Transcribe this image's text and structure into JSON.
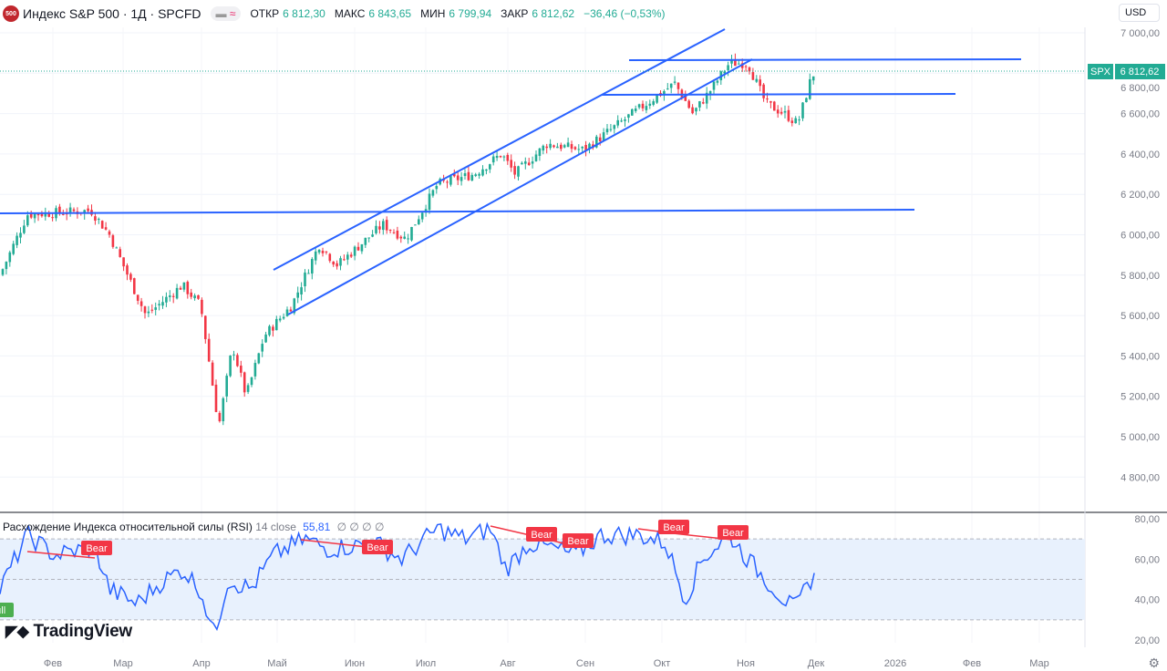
{
  "header": {
    "logo": "500",
    "title": "Индекс S&P 500 · 1Д · SPCFD",
    "pill_icon": "≈",
    "open_label": "ОТКР",
    "open": "6 812,30",
    "high_label": "МАКС",
    "high": "6 843,65",
    "low_label": "МИН",
    "low": "6 799,94",
    "close_label": "ЗАКР",
    "close": "6 812,62",
    "change": "−36,46 (−0,53%)"
  },
  "currency": "USD",
  "price_axis": [
    "7 000,00",
    "6 800,00",
    "6 600,00",
    "6 400,00",
    "6 200,00",
    "6 000,00",
    "5 800,00",
    "5 600,00",
    "5 400,00",
    "5 200,00",
    "5 000,00",
    "4 800,00"
  ],
  "price_tag": {
    "symbol": "SPX",
    "value": "6 812,62"
  },
  "rsi": {
    "title": "Расхождение Индекса относительной силы (RSI)",
    "params": "14 close",
    "value": "55,81",
    "extras": "∅ ∅ ∅ ∅",
    "axis": [
      "80,00",
      "60,00",
      "40,00",
      "20,00"
    ],
    "labels": [
      "Bear",
      "Bear",
      "Bear",
      "Bear",
      "Bear",
      "Bear",
      "Bull"
    ]
  },
  "time_axis": [
    "Фев",
    "Мар",
    "Апр",
    "Май",
    "Июн",
    "Июл",
    "Авг",
    "Сен",
    "Окт",
    "Ноя",
    "Дек",
    "2026",
    "Фев",
    "Мар"
  ],
  "brand": "TradingView",
  "colors": {
    "up": "#22ab94",
    "down": "#f23645",
    "line": "#2962ff",
    "rsi": "#2962ff",
    "bear": "#f23645"
  },
  "chart_data": {
    "type": "candlestick",
    "series_close_keypoints": [
      [
        "Янв",
        5800
      ],
      [
        "Янв",
        6100
      ],
      [
        "Фев",
        6120
      ],
      [
        "Фев",
        6000
      ],
      [
        "Мар",
        5600
      ],
      [
        "Мар",
        5750
      ],
      [
        "Апр",
        5650
      ],
      [
        "Апр",
        5050
      ],
      [
        "Апр",
        5450
      ],
      [
        "Апр",
        5200
      ],
      [
        "Май",
        5500
      ],
      [
        "Май",
        5650
      ],
      [
        "Июн",
        5950
      ],
      [
        "Июн",
        5850
      ],
      [
        "Июн",
        6050
      ],
      [
        "Июл",
        5980
      ],
      [
        "Июл",
        6250
      ],
      [
        "Авг",
        6300
      ],
      [
        "Авг",
        6400
      ],
      [
        "Авг",
        6300
      ],
      [
        "Сен",
        6450
      ],
      [
        "Сен",
        6420
      ],
      [
        "Окт",
        6620
      ],
      [
        "Окт",
        6750
      ],
      [
        "Окт",
        6600
      ],
      [
        "Окт",
        6720
      ],
      [
        "Ноя",
        6850
      ],
      [
        "Ноя",
        6850
      ],
      [
        "Ноя",
        6650
      ],
      [
        "Ноя",
        6600
      ],
      [
        "Ноя",
        6550
      ],
      [
        "Дек",
        6780
      ],
      [
        "Дек",
        6812.62
      ]
    ],
    "ylim": [
      4750,
      7050
    ]
  }
}
